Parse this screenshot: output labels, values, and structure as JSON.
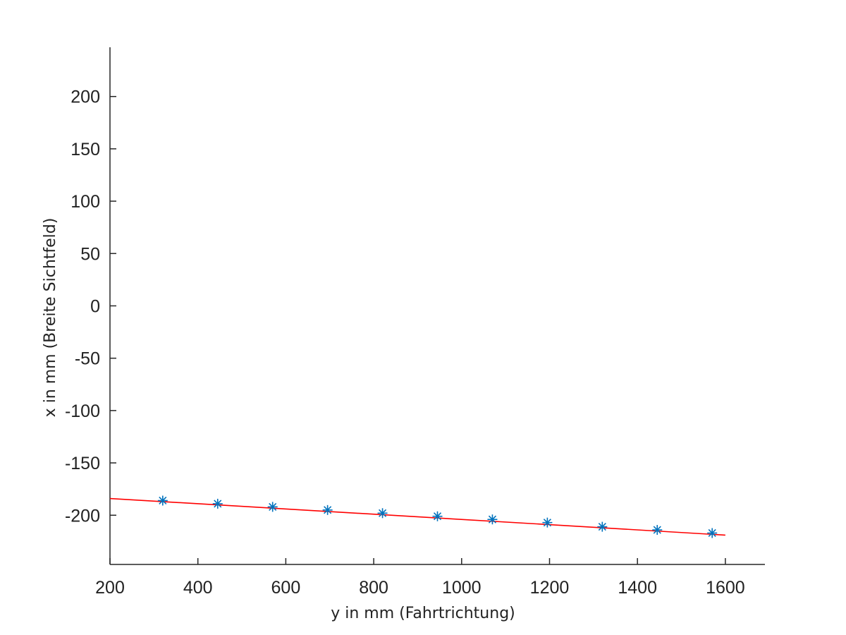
{
  "chart_data": {
    "type": "scatter",
    "xlabel": "y in mm (Fahrtrichtung)",
    "ylabel": "x in mm (Breite Sichtfeld)",
    "xlim": [
      200,
      1690
    ],
    "ylim": [
      -247,
      247
    ],
    "x_ticks": [
      200,
      400,
      600,
      800,
      1000,
      1200,
      1400,
      1600
    ],
    "y_ticks": [
      200,
      150,
      100,
      50,
      0,
      -50,
      -100,
      -150,
      -200
    ],
    "grid": false,
    "series": [
      {
        "marker": "asterisk",
        "color": "#0072BD",
        "x": [
          320,
          445,
          570,
          695,
          820,
          945,
          1070,
          1195,
          1320,
          1445,
          1570
        ],
        "y": [
          -186,
          -189,
          -192,
          -195,
          -198,
          -201,
          -204,
          -207,
          -211,
          -214,
          -217
        ]
      },
      {
        "line": true,
        "color": "#FF0000",
        "x": [
          200,
          1600
        ],
        "y": [
          -184,
          -219
        ]
      }
    ]
  }
}
